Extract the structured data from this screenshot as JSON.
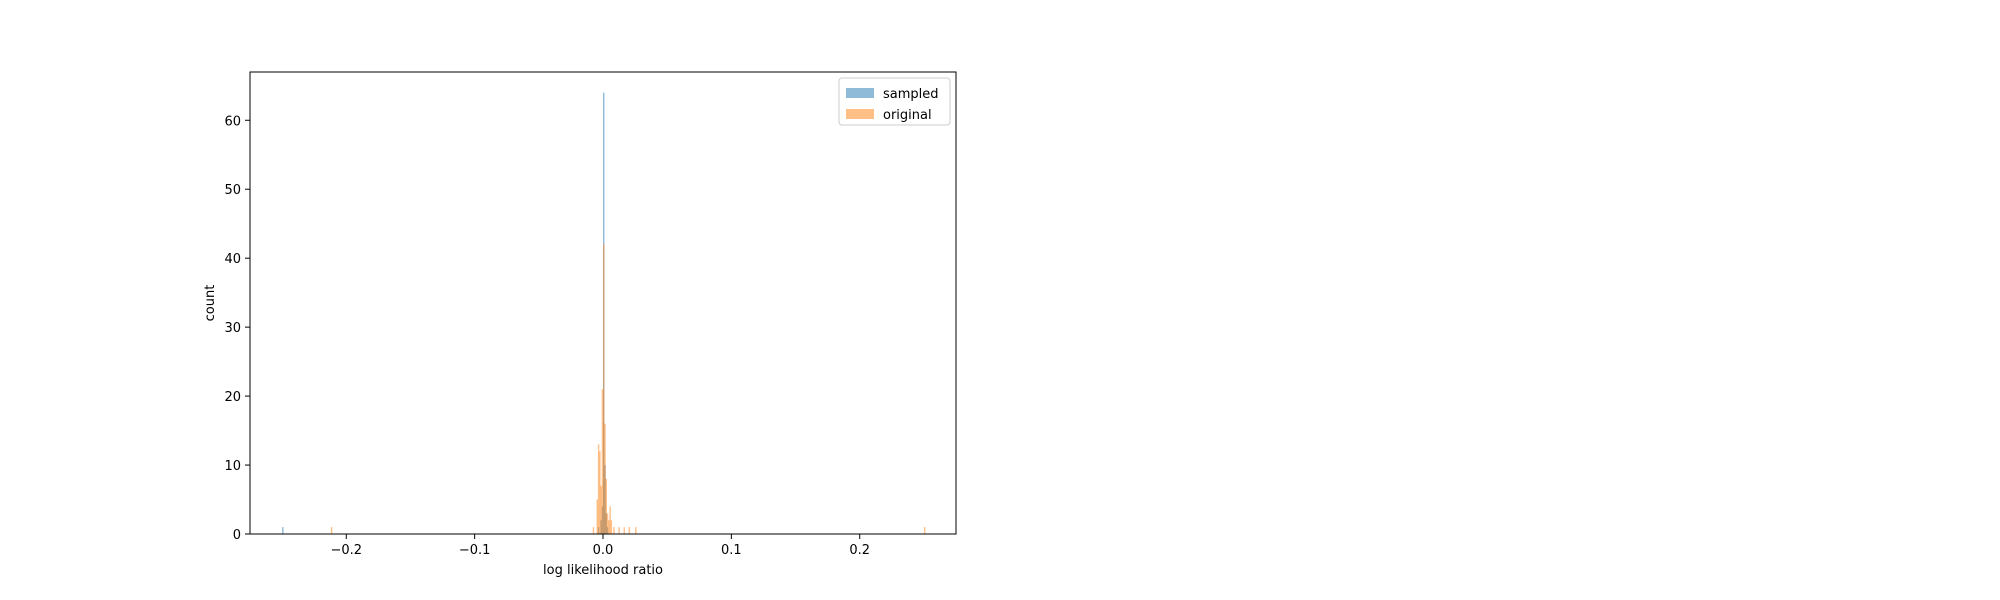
{
  "chart_data": {
    "type": "bar",
    "xlabel": "log likelihood ratio",
    "ylabel": "count",
    "xlim": [
      -0.275,
      0.275
    ],
    "ylim": [
      0,
      67
    ],
    "xticks": [
      -0.2,
      -0.1,
      0.0,
      0.1,
      0.2
    ],
    "xtick_labels": [
      "−0.2",
      "−0.1",
      "0.0",
      "0.1",
      "0.2"
    ],
    "yticks": [
      0,
      10,
      20,
      30,
      40,
      50,
      60
    ],
    "ytick_labels": [
      "0",
      "10",
      "20",
      "30",
      "40",
      "50",
      "60"
    ],
    "legend_position": "upper right",
    "bin_width": 0.0011,
    "series": [
      {
        "name": "sampled",
        "color": "#1f77b4",
        "opacity": 0.5,
        "bins": [
          {
            "x": -0.25,
            "count": 1
          },
          {
            "x": -0.004,
            "count": 1
          },
          {
            "x": -0.002,
            "count": 2
          },
          {
            "x": -0.001,
            "count": 4
          },
          {
            "x": 0.0,
            "count": 64
          },
          {
            "x": 0.001,
            "count": 10
          },
          {
            "x": 0.002,
            "count": 3
          },
          {
            "x": 0.003,
            "count": 1
          }
        ]
      },
      {
        "name": "original",
        "color": "#ff7f0e",
        "opacity": 0.5,
        "bins": [
          {
            "x": -0.212,
            "count": 1
          },
          {
            "x": -0.008,
            "count": 1
          },
          {
            "x": -0.005,
            "count": 5
          },
          {
            "x": -0.004,
            "count": 13
          },
          {
            "x": -0.003,
            "count": 12
          },
          {
            "x": -0.002,
            "count": 7
          },
          {
            "x": -0.001,
            "count": 21
          },
          {
            "x": 0.0,
            "count": 42
          },
          {
            "x": 0.001,
            "count": 16
          },
          {
            "x": 0.002,
            "count": 8
          },
          {
            "x": 0.003,
            "count": 3
          },
          {
            "x": 0.004,
            "count": 2
          },
          {
            "x": 0.005,
            "count": 4
          },
          {
            "x": 0.006,
            "count": 2
          },
          {
            "x": 0.008,
            "count": 1
          },
          {
            "x": 0.012,
            "count": 1
          },
          {
            "x": 0.016,
            "count": 1
          },
          {
            "x": 0.02,
            "count": 1
          },
          {
            "x": 0.025,
            "count": 1
          },
          {
            "x": 0.25,
            "count": 1
          }
        ]
      }
    ]
  }
}
